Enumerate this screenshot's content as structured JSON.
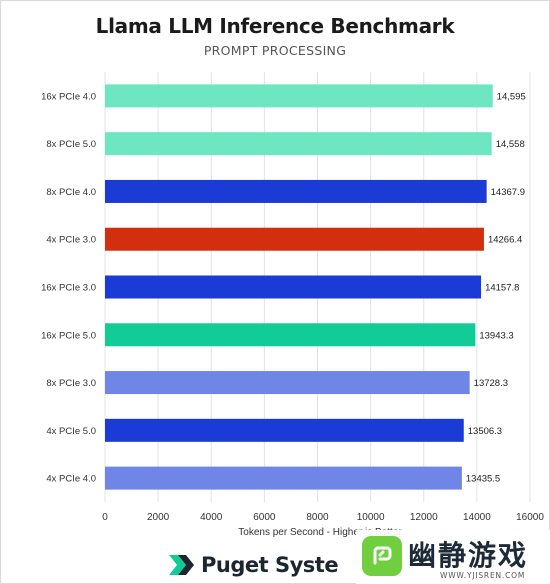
{
  "chart_data": {
    "type": "bar",
    "orientation": "horizontal",
    "title": "Llama LLM Inference Benchmark",
    "subtitle": "PROMPT PROCESSING",
    "xlabel": "Tokens per Second - Higher is Better",
    "xlim": [
      0,
      16000
    ],
    "xticks": [
      0,
      2000,
      4000,
      6000,
      8000,
      10000,
      12000,
      14000,
      16000
    ],
    "grid": "vertical",
    "categories": [
      "16x PCIe 4.0",
      "8x PCIe 5.0",
      "8x PCIe 4.0",
      "4x PCIe 3.0",
      "16x PCIe 3.0",
      "16x PCIe 5.0",
      "8x PCIe 3.0",
      "4x PCIe 5.0",
      "4x PCIe 4.0"
    ],
    "values": [
      14595,
      14558,
      14367.9,
      14266.4,
      14157.8,
      13943.3,
      13728.3,
      13506.3,
      13435.5
    ],
    "value_labels": [
      "14,595",
      "14,558",
      "14367.9",
      "14266.4",
      "14157.8",
      "13943.3",
      "13728.3",
      "13506.3",
      "13435.5"
    ],
    "colors": [
      "#6ee6c2",
      "#6ee6c2",
      "#1a3bd6",
      "#d22e10",
      "#1a3bd6",
      "#12cc98",
      "#6f86e6",
      "#1a3bd6",
      "#6f86e6"
    ]
  },
  "logo": {
    "left_text": "Puget Syste",
    "watermark_cn": "幽静游戏",
    "watermark_url": "WWW.YJISREN.COM"
  },
  "icons": {
    "brand": "puget-logo-icon",
    "watermark": "watermark-app-icon"
  }
}
